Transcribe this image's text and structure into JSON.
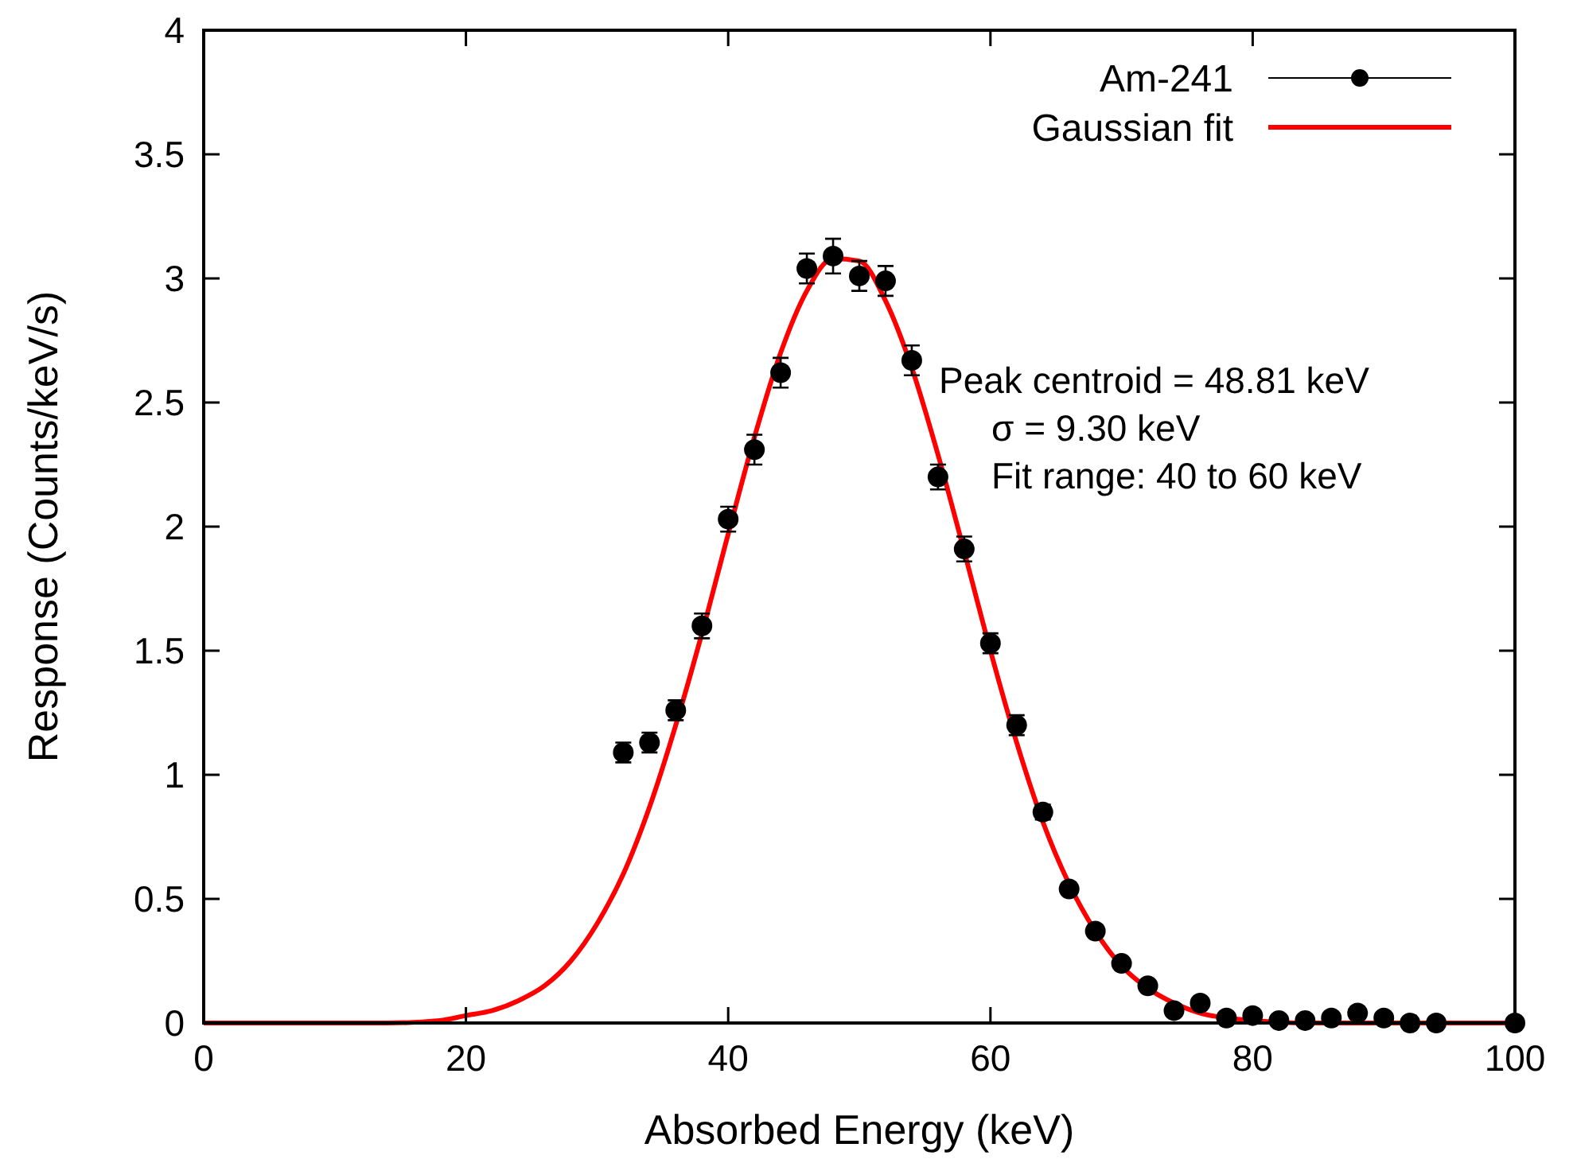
{
  "chart_data": {
    "type": "scatter",
    "xlabel": "Absorbed Energy (keV)",
    "ylabel": "Response (Counts/keV/s)",
    "xlim": [
      0,
      100
    ],
    "xticks": [
      0,
      20,
      40,
      60,
      80,
      100
    ],
    "ylim": [
      0,
      4
    ],
    "yticks": [
      0,
      0.5,
      1,
      1.5,
      2,
      2.5,
      3,
      3.5,
      4
    ],
    "legend": "top right",
    "grid": false,
    "annotations": [
      "Peak centroid = 48.81 keV",
      "σ = 9.30 keV",
      "Fit range: 40 to 60 keV"
    ],
    "series": [
      {
        "name": "Am-241",
        "color": "#000000",
        "marker": "circle",
        "x": [
          32,
          34,
          36,
          38,
          40,
          42,
          44,
          46,
          48,
          50,
          52,
          54,
          56,
          58,
          60,
          62,
          64,
          66,
          68,
          70,
          72,
          74,
          76,
          78,
          80,
          82,
          84,
          86,
          88,
          90,
          92,
          94,
          100
        ],
        "values": [
          1.09,
          1.13,
          1.26,
          1.6,
          2.03,
          2.31,
          2.62,
          3.04,
          3.09,
          3.01,
          2.99,
          2.67,
          2.2,
          1.91,
          1.53,
          1.2,
          0.85,
          0.54,
          0.37,
          0.24,
          0.15,
          0.05,
          0.08,
          0.02,
          0.03,
          0.01,
          0.01,
          0.02,
          0.04,
          0.02,
          0,
          0,
          0
        ],
        "errors": [
          0.04,
          0.04,
          0.04,
          0.05,
          0.05,
          0.06,
          0.06,
          0.06,
          0.07,
          0.06,
          0.06,
          0.06,
          0.05,
          0.05,
          0.04,
          0.04,
          0.03,
          null,
          null,
          null,
          null,
          null,
          null,
          null,
          null,
          null,
          null,
          null,
          null,
          null,
          null,
          null,
          null
        ]
      },
      {
        "name": "Gaussian fit",
        "type": "line",
        "color": "#ff0000",
        "marker": "none",
        "line_style": "solid",
        "x": [
          0,
          10,
          14,
          18,
          20,
          22,
          24,
          26,
          28,
          30,
          32,
          34,
          36,
          38,
          40,
          42,
          44,
          46,
          48,
          50,
          52,
          54,
          56,
          58,
          60,
          62,
          64,
          66,
          68,
          70,
          72,
          74,
          76,
          78,
          80,
          84,
          90,
          100
        ],
        "values": [
          0,
          0,
          0,
          0.01,
          0.03,
          0.05,
          0.09,
          0.15,
          0.25,
          0.4,
          0.6,
          0.87,
          1.2,
          1.57,
          1.97,
          2.36,
          2.7,
          2.95,
          3.08,
          3.07,
          2.91,
          2.64,
          2.29,
          1.9,
          1.5,
          1.13,
          0.81,
          0.56,
          0.37,
          0.23,
          0.14,
          0.08,
          0.04,
          0.02,
          0.01,
          0,
          0,
          0
        ]
      }
    ]
  }
}
